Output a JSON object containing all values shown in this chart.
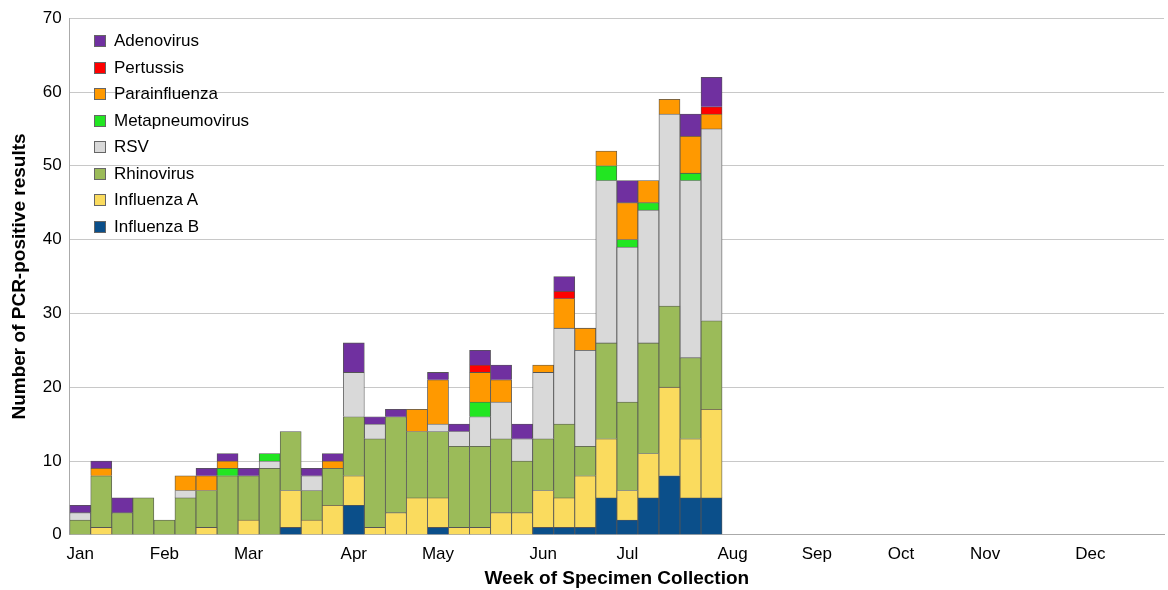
{
  "chart_data": {
    "type": "bar",
    "stacked": true,
    "xlabel": "Week of Specimen Collection",
    "ylabel": "Number of PCR-positive results",
    "categories": [
      "Jan",
      null,
      null,
      null,
      "Feb",
      null,
      null,
      null,
      "Mar",
      null,
      null,
      null,
      null,
      "Apr",
      null,
      null,
      null,
      "May",
      null,
      null,
      null,
      null,
      "Jun",
      null,
      null,
      null,
      "Jul",
      null,
      null,
      null,
      null,
      "Aug",
      null,
      null,
      null,
      "Sep",
      null,
      null,
      null,
      "Oct",
      null,
      null,
      null,
      "Nov",
      null,
      null,
      null,
      null,
      "Dec",
      null,
      null,
      null
    ],
    "series": [
      {
        "name": "Influenza B",
        "color": "#0b4f8a",
        "values": [
          0,
          0,
          0,
          0,
          0,
          0,
          0,
          0,
          0,
          0,
          1,
          0,
          0,
          4,
          0,
          0,
          0,
          1,
          0,
          0,
          0,
          0,
          1,
          1,
          1,
          5,
          2,
          5,
          8,
          5,
          5,
          null,
          null,
          null,
          null,
          null,
          null,
          null,
          null,
          null,
          null,
          null,
          null,
          null,
          null,
          null,
          null,
          null,
          null,
          null,
          null,
          null
        ]
      },
      {
        "name": "Influenza A",
        "color": "#fadb5e",
        "values": [
          0,
          1,
          0,
          0,
          0,
          0,
          1,
          0,
          2,
          0,
          5,
          2,
          4,
          4,
          1,
          3,
          5,
          4,
          1,
          1,
          3,
          3,
          5,
          4,
          7,
          8,
          4,
          6,
          12,
          8,
          12,
          null,
          null,
          null,
          null,
          null,
          null,
          null,
          null,
          null,
          null,
          null,
          null,
          null,
          null,
          null,
          null,
          null,
          null,
          null,
          null,
          null
        ]
      },
      {
        "name": "Rhinovirus",
        "color": "#9bbb59",
        "values": [
          2,
          7,
          3,
          5,
          2,
          5,
          5,
          8,
          6,
          9,
          8,
          4,
          5,
          8,
          12,
          13,
          9,
          9,
          11,
          11,
          10,
          7,
          7,
          10,
          4,
          13,
          12,
          15,
          11,
          11,
          12,
          null,
          null,
          null,
          null,
          null,
          null,
          null,
          null,
          null,
          null,
          null,
          null,
          null,
          null,
          null,
          null,
          null,
          null,
          null,
          null,
          null
        ]
      },
      {
        "name": "RSV",
        "color": "#d9d9d9",
        "values": [
          1,
          0,
          0,
          0,
          0,
          1,
          0,
          0,
          0,
          1,
          0,
          2,
          0,
          6,
          2,
          0,
          0,
          1,
          2,
          4,
          5,
          3,
          9,
          13,
          13,
          22,
          21,
          18,
          26,
          24,
          26,
          null,
          null,
          null,
          null,
          null,
          null,
          null,
          null,
          null,
          null,
          null,
          null,
          null,
          null,
          null,
          null,
          null,
          null,
          null,
          null,
          null
        ]
      },
      {
        "name": "Metapneumovirus",
        "color": "#22e622",
        "values": [
          0,
          0,
          0,
          0,
          0,
          0,
          0,
          1,
          0,
          1,
          0,
          0,
          0,
          0,
          0,
          0,
          0,
          0,
          0,
          2,
          0,
          0,
          0,
          0,
          0,
          2,
          1,
          1,
          0,
          1,
          0,
          null,
          null,
          null,
          null,
          null,
          null,
          null,
          null,
          null,
          null,
          null,
          null,
          null,
          null,
          null,
          null,
          null,
          null,
          null,
          null,
          null
        ]
      },
      {
        "name": "Parainfluenza",
        "color": "#ff9900",
        "values": [
          0,
          1,
          0,
          0,
          0,
          2,
          2,
          1,
          0,
          0,
          0,
          0,
          1,
          0,
          0,
          0,
          3,
          6,
          0,
          4,
          3,
          0,
          1,
          4,
          3,
          2,
          5,
          3,
          2,
          5,
          2,
          null,
          null,
          null,
          null,
          null,
          null,
          null,
          null,
          null,
          null,
          null,
          null,
          null,
          null,
          null,
          null,
          null,
          null,
          null,
          null,
          null
        ]
      },
      {
        "name": "Pertussis",
        "color": "#ff0000",
        "values": [
          0,
          0,
          0,
          0,
          0,
          0,
          0,
          0,
          0,
          0,
          0,
          0,
          0,
          0,
          0,
          0,
          0,
          0,
          0,
          1,
          0,
          0,
          0,
          1,
          0,
          0,
          0,
          0,
          0,
          0,
          1,
          null,
          null,
          null,
          null,
          null,
          null,
          null,
          null,
          null,
          null,
          null,
          null,
          null,
          null,
          null,
          null,
          null,
          null,
          null,
          null,
          null
        ]
      },
      {
        "name": "Adenovirus",
        "color": "#7030a0",
        "values": [
          1,
          1,
          2,
          0,
          0,
          0,
          1,
          1,
          1,
          0,
          0,
          1,
          1,
          4,
          1,
          1,
          0,
          1,
          1,
          2,
          2,
          2,
          0,
          2,
          0,
          0,
          3,
          0,
          0,
          3,
          4,
          null,
          null,
          null,
          null,
          null,
          null,
          null,
          null,
          null,
          null,
          null,
          null,
          null,
          null,
          null,
          null,
          null,
          null,
          null,
          null,
          null
        ]
      }
    ],
    "ylim": [
      0,
      70
    ],
    "yticks": [
      0,
      10,
      20,
      30,
      40,
      50,
      60,
      70
    ],
    "grid": "y",
    "legend": "top left"
  }
}
